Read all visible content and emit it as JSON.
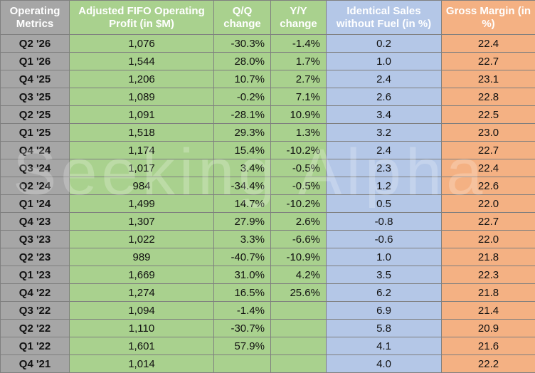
{
  "headers": {
    "metric": "Operating Metrics",
    "profit": "Adjusted FIFO Operating Profit (in $M)",
    "qq": "Q/Q change",
    "yy": "Y/Y change",
    "sales": "Identical Sales without Fuel (in %)",
    "margin": "Gross Margin (in %)"
  },
  "watermark": "Seeking Alpha",
  "rows": [
    {
      "q": "Q2 '26",
      "profit": "1,076",
      "qq": "-30.3%",
      "yy": "-1.4%",
      "sales": "0.2",
      "margin": "22.4"
    },
    {
      "q": "Q1 '26",
      "profit": "1,544",
      "qq": "28.0%",
      "yy": "1.7%",
      "sales": "1.0",
      "margin": "22.7"
    },
    {
      "q": "Q4 '25",
      "profit": "1,206",
      "qq": "10.7%",
      "yy": "2.7%",
      "sales": "2.4",
      "margin": "23.1"
    },
    {
      "q": "Q3 '25",
      "profit": "1,089",
      "qq": "-0.2%",
      "yy": "7.1%",
      "sales": "2.6",
      "margin": "22.8"
    },
    {
      "q": "Q2 '25",
      "profit": "1,091",
      "qq": "-28.1%",
      "yy": "10.9%",
      "sales": "3.4",
      "margin": "22.5"
    },
    {
      "q": "Q1 '25",
      "profit": "1,518",
      "qq": "29.3%",
      "yy": "1.3%",
      "sales": "3.2",
      "margin": "23.0"
    },
    {
      "q": "Q4 '24",
      "profit": "1,174",
      "qq": "15.4%",
      "yy": "-10.2%",
      "sales": "2.4",
      "margin": "22.7"
    },
    {
      "q": "Q3 '24",
      "profit": "1,017",
      "qq": "3.4%",
      "yy": "-0.5%",
      "sales": "2.3",
      "margin": "22.4"
    },
    {
      "q": "Q2 '24",
      "profit": "984",
      "qq": "-34.4%",
      "yy": "-0.5%",
      "sales": "1.2",
      "margin": "22.6"
    },
    {
      "q": "Q1 '24",
      "profit": "1,499",
      "qq": "14.7%",
      "yy": "-10.2%",
      "sales": "0.5",
      "margin": "22.0"
    },
    {
      "q": "Q4 '23",
      "profit": "1,307",
      "qq": "27.9%",
      "yy": "2.6%",
      "sales": "-0.8",
      "margin": "22.7"
    },
    {
      "q": "Q3 '23",
      "profit": "1,022",
      "qq": "3.3%",
      "yy": "-6.6%",
      "sales": "-0.6",
      "margin": "22.0"
    },
    {
      "q": "Q2 '23",
      "profit": "989",
      "qq": "-40.7%",
      "yy": "-10.9%",
      "sales": "1.0",
      "margin": "21.8"
    },
    {
      "q": "Q1 '23",
      "profit": "1,669",
      "qq": "31.0%",
      "yy": "4.2%",
      "sales": "3.5",
      "margin": "22.3"
    },
    {
      "q": "Q4 '22",
      "profit": "1,274",
      "qq": "16.5%",
      "yy": "25.6%",
      "sales": "6.2",
      "margin": "21.8"
    },
    {
      "q": "Q3 '22",
      "profit": "1,094",
      "qq": "-1.4%",
      "yy": "",
      "sales": "6.9",
      "margin": "21.4"
    },
    {
      "q": "Q2 '22",
      "profit": "1,110",
      "qq": "-30.7%",
      "yy": "",
      "sales": "5.8",
      "margin": "20.9"
    },
    {
      "q": "Q1 '22",
      "profit": "1,601",
      "qq": "57.9%",
      "yy": "",
      "sales": "4.1",
      "margin": "21.6"
    },
    {
      "q": "Q4 '21",
      "profit": "1,014",
      "qq": "",
      "yy": "",
      "sales": "4.0",
      "margin": "22.2"
    }
  ]
}
